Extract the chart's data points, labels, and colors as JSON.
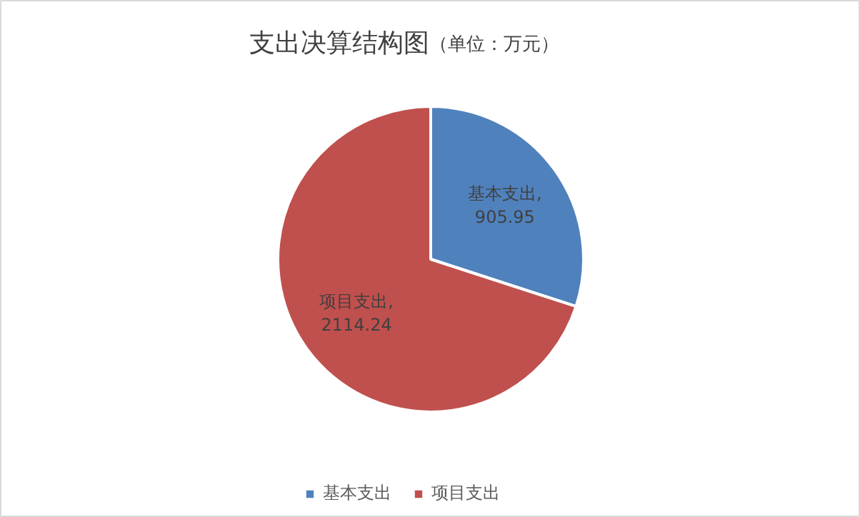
{
  "chart_data": {
    "type": "pie",
    "title": "支出决算结构图",
    "subtitle": "（单位：万元）",
    "categories": [
      "基本支出",
      "项目支出"
    ],
    "values": [
      905.95,
      2114.24
    ],
    "colors": [
      "#4f81bd",
      "#c0504d"
    ],
    "value_labels": [
      "基本支出,\n905.95",
      "项目支出,\n2114.24"
    ],
    "legend": "bottom"
  }
}
